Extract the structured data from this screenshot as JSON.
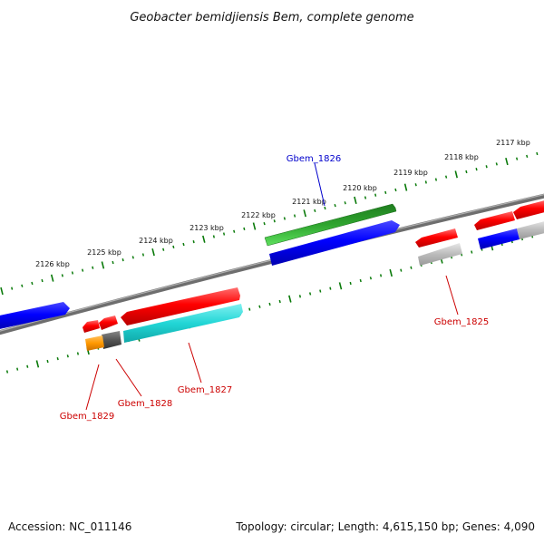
{
  "title": "Geobacter bemidjiensis Bem, complete genome",
  "footer": {
    "accession_text": "Accession: NC_011146",
    "summary_text": "Topology: circular; Length: 4,615,150 bp; Genes: 4,090"
  },
  "ruler": {
    "ticks": [
      {
        "label": "2117 kbp"
      },
      {
        "label": "2118 kbp"
      },
      {
        "label": "2119 kbp"
      },
      {
        "label": "2120 kbp"
      },
      {
        "label": "2121 kbp"
      },
      {
        "label": "2122 kbp"
      },
      {
        "label": "2123 kbp"
      },
      {
        "label": "2124 kbp"
      },
      {
        "label": "2125 kbp"
      },
      {
        "label": "2126 kbp"
      }
    ]
  },
  "gene_labels": [
    {
      "name": "Gbem_1826",
      "color": "#0000cc"
    },
    {
      "name": "Gbem_1825",
      "color": "#cc0000"
    },
    {
      "name": "Gbem_1827",
      "color": "#cc0000"
    },
    {
      "name": "Gbem_1828",
      "color": "#cc0000"
    },
    {
      "name": "Gbem_1829",
      "color": "#cc0000"
    }
  ],
  "colors": {
    "forward_cds": "#ff0000",
    "reverse_cds": "#0000ff",
    "green_track": "#2a9a2a",
    "cyan_track": "#22d6d6",
    "orange_track": "#ff9900",
    "dark_gray_track": "#555555",
    "light_gray_track": "#bbbbbb",
    "backbone": "#7a7a7a",
    "tick_green": "#0a7a0a"
  }
}
